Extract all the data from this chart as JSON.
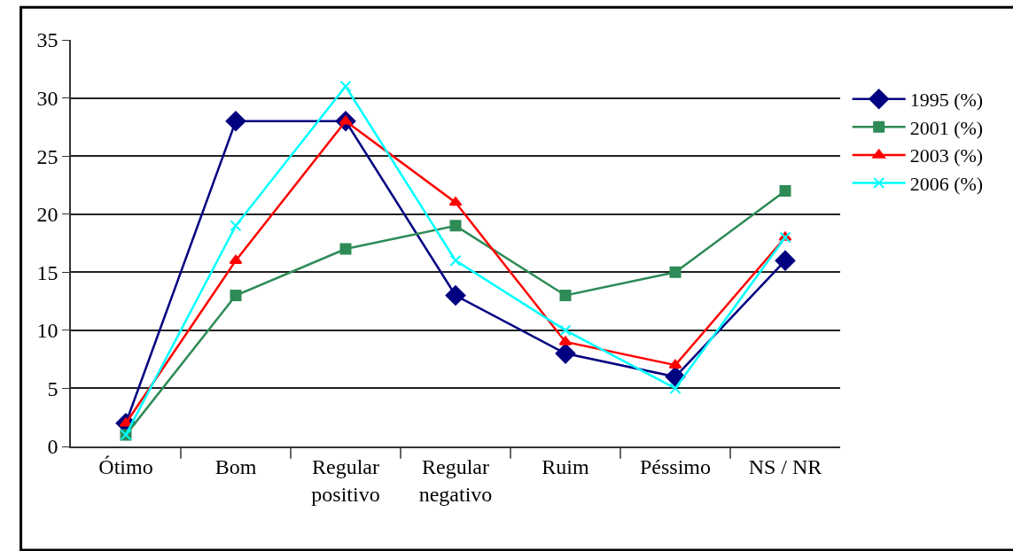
{
  "chart_data": {
    "type": "line",
    "categories": [
      "Ótimo",
      "Bom",
      "Regular\npositivo",
      "Regular\nnegativo",
      "Ruim",
      "Péssimo",
      "NS / NR"
    ],
    "series": [
      {
        "name": "1995 (%)",
        "color": "#000080",
        "marker": "diamond",
        "values": [
          2,
          28,
          28,
          13,
          8,
          6,
          16
        ]
      },
      {
        "name": "2001 (%)",
        "color": "#2e8b57",
        "marker": "square",
        "values": [
          1,
          13,
          17,
          19,
          13,
          15,
          22
        ]
      },
      {
        "name": "2003 (%)",
        "color": "#ff0000",
        "marker": "triangle",
        "values": [
          2,
          16,
          28,
          21,
          9,
          7,
          18
        ]
      },
      {
        "name": "2006 (%)",
        "color": "#00ffff",
        "marker": "cross",
        "values": [
          1,
          19,
          31,
          16,
          10,
          5,
          18
        ]
      }
    ],
    "ylim": [
      0,
      35
    ],
    "yticks": [
      0,
      5,
      10,
      15,
      20,
      25,
      30,
      35
    ],
    "grid": "y",
    "legend": "right",
    "line_style": "solid"
  }
}
